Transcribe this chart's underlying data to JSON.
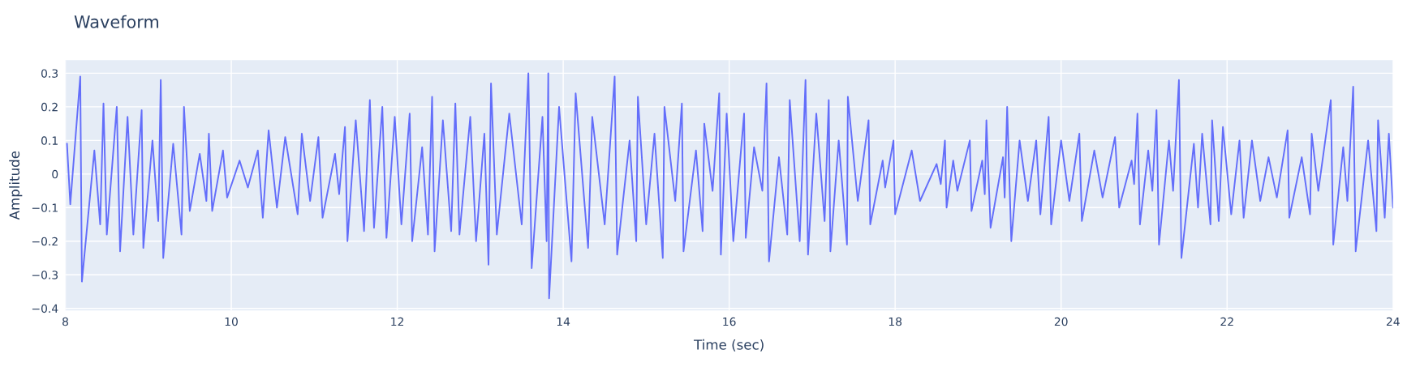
{
  "chart_data": {
    "type": "line",
    "title": "Waveform",
    "xlabel": "Time (sec)",
    "ylabel": "Amplitude",
    "xlim": [
      8,
      24
    ],
    "xticks": [
      8,
      10,
      12,
      14,
      16,
      18,
      20,
      22,
      24
    ],
    "ylim": [
      -0.406,
      0.339
    ],
    "yticks": [
      {
        "value": -0.4,
        "label": "−0.4"
      },
      {
        "value": -0.3,
        "label": "−0.3"
      },
      {
        "value": -0.2,
        "label": "−0.2"
      },
      {
        "value": -0.1,
        "label": "−0.1"
      },
      0,
      0.1,
      0.2,
      0.3
    ],
    "grid": true,
    "marker": "none",
    "line_style": "solid",
    "series": [
      {
        "color": "#636efa",
        "x": [
          8.02,
          8.06,
          8.18,
          8.2,
          8.35,
          8.42,
          8.46,
          8.5,
          8.62,
          8.66,
          8.75,
          8.82,
          8.92,
          8.94,
          9.05,
          9.12,
          9.15,
          9.18,
          9.3,
          9.4,
          9.43,
          9.5,
          9.62,
          9.7,
          9.73,
          9.77,
          9.9,
          9.95,
          10.1,
          10.2,
          10.32,
          10.38,
          10.45,
          10.55,
          10.65,
          10.8,
          10.85,
          10.95,
          11.05,
          11.1,
          11.25,
          11.3,
          11.37,
          11.4,
          11.5,
          11.6,
          11.67,
          11.72,
          11.82,
          11.87,
          11.97,
          12.05,
          12.15,
          12.18,
          12.3,
          12.37,
          12.42,
          12.45,
          12.55,
          12.65,
          12.7,
          12.75,
          12.88,
          12.95,
          13.05,
          13.1,
          13.13,
          13.2,
          13.35,
          13.5,
          13.58,
          13.62,
          13.75,
          13.8,
          13.82,
          13.83,
          13.95,
          14.1,
          14.15,
          14.3,
          14.35,
          14.5,
          14.62,
          14.65,
          14.8,
          14.88,
          14.9,
          15.0,
          15.1,
          15.2,
          15.22,
          15.35,
          15.43,
          15.45,
          15.6,
          15.68,
          15.7,
          15.8,
          15.88,
          15.9,
          15.97,
          16.05,
          16.18,
          16.2,
          16.3,
          16.4,
          16.45,
          16.48,
          16.6,
          16.7,
          16.73,
          16.85,
          16.92,
          16.95,
          17.05,
          17.15,
          17.2,
          17.22,
          17.32,
          17.42,
          17.43,
          17.55,
          17.68,
          17.7,
          17.85,
          17.88,
          17.98,
          18.0,
          18.2,
          18.3,
          18.5,
          18.55,
          18.6,
          18.62,
          18.7,
          18.75,
          18.9,
          18.92,
          19.05,
          19.08,
          19.1,
          19.15,
          19.3,
          19.32,
          19.35,
          19.4,
          19.5,
          19.6,
          19.7,
          19.75,
          19.85,
          19.88,
          20.0,
          20.1,
          20.22,
          20.25,
          20.4,
          20.5,
          20.65,
          20.7,
          20.85,
          20.88,
          20.92,
          20.95,
          21.05,
          21.1,
          21.15,
          21.18,
          21.3,
          21.35,
          21.42,
          21.45,
          21.6,
          21.65,
          21.7,
          21.8,
          21.82,
          21.9,
          21.95,
          22.05,
          22.15,
          22.2,
          22.3,
          22.4,
          22.5,
          22.6,
          22.73,
          22.75,
          22.9,
          23.0,
          23.02,
          23.1,
          23.25,
          23.28,
          23.4,
          23.45,
          23.52,
          23.55,
          23.7,
          23.8,
          23.82,
          23.9,
          23.95,
          24.0
        ],
        "values": [
          0.09,
          -0.09,
          0.29,
          -0.32,
          0.07,
          -0.15,
          0.21,
          -0.18,
          0.2,
          -0.23,
          0.17,
          -0.18,
          0.19,
          -0.22,
          0.1,
          -0.14,
          0.28,
          -0.25,
          0.09,
          -0.18,
          0.2,
          -0.11,
          0.06,
          -0.08,
          0.12,
          -0.11,
          0.07,
          -0.07,
          0.04,
          -0.04,
          0.07,
          -0.13,
          0.13,
          -0.1,
          0.11,
          -0.12,
          0.12,
          -0.08,
          0.11,
          -0.13,
          0.06,
          -0.06,
          0.14,
          -0.2,
          0.16,
          -0.17,
          0.22,
          -0.16,
          0.2,
          -0.19,
          0.17,
          -0.15,
          0.18,
          -0.2,
          0.08,
          -0.18,
          0.23,
          -0.23,
          0.16,
          -0.17,
          0.21,
          -0.18,
          0.17,
          -0.2,
          0.12,
          -0.27,
          0.27,
          -0.18,
          0.18,
          -0.15,
          0.3,
          -0.28,
          0.17,
          -0.2,
          0.3,
          -0.37,
          0.2,
          -0.26,
          0.24,
          -0.22,
          0.17,
          -0.15,
          0.29,
          -0.24,
          0.1,
          -0.2,
          0.23,
          -0.15,
          0.12,
          -0.25,
          0.2,
          -0.08,
          0.21,
          -0.23,
          0.07,
          -0.17,
          0.15,
          -0.05,
          0.24,
          -0.24,
          0.18,
          -0.2,
          0.18,
          -0.19,
          0.08,
          -0.05,
          0.27,
          -0.26,
          0.05,
          -0.18,
          0.22,
          -0.2,
          0.28,
          -0.24,
          0.18,
          -0.14,
          0.22,
          -0.23,
          0.1,
          -0.21,
          0.23,
          -0.08,
          0.16,
          -0.15,
          0.04,
          -0.04,
          0.1,
          -0.12,
          0.07,
          -0.08,
          0.03,
          -0.03,
          0.1,
          -0.1,
          0.04,
          -0.05,
          0.1,
          -0.11,
          0.04,
          -0.06,
          0.16,
          -0.16,
          0.05,
          -0.07,
          0.2,
          -0.2,
          0.1,
          -0.08,
          0.1,
          -0.12,
          0.17,
          -0.15,
          0.1,
          -0.08,
          0.12,
          -0.14,
          0.07,
          -0.07,
          0.11,
          -0.1,
          0.04,
          -0.03,
          0.18,
          -0.15,
          0.07,
          -0.05,
          0.19,
          -0.21,
          0.1,
          -0.05,
          0.28,
          -0.25,
          0.09,
          -0.1,
          0.12,
          -0.15,
          0.16,
          -0.14,
          0.14,
          -0.12,
          0.1,
          -0.13,
          0.1,
          -0.08,
          0.05,
          -0.07,
          0.13,
          -0.13,
          0.05,
          -0.12,
          0.12,
          -0.05,
          0.22,
          -0.21,
          0.08,
          -0.08,
          0.26,
          -0.23,
          0.1,
          -0.17,
          0.16,
          -0.13,
          0.12,
          -0.1
        ]
      }
    ]
  }
}
